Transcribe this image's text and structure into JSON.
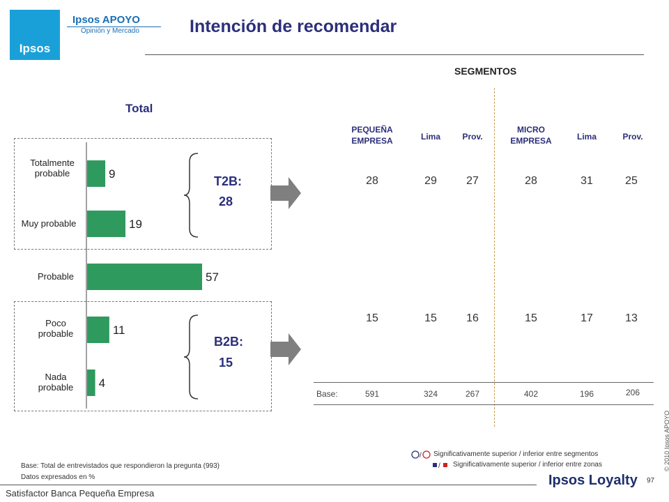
{
  "header": {
    "brand_name": "Ipsos APOYO",
    "brand_sub": "Opinión y Mercado",
    "logo_text": "Ipsos",
    "title": "Intención de recomendar"
  },
  "segments_title": "SEGMENTOS",
  "colors": {
    "bar": "#2e9a5e",
    "title": "#2c2f7a",
    "arrow": "#7f7f7f",
    "divider": "#c89a4a"
  },
  "chart_data": {
    "type": "bar",
    "title": "Total",
    "categories": [
      "Totalmente probable",
      "Muy probable",
      "Probable",
      "Poco probable",
      "Nada probable"
    ],
    "values": [
      9,
      19,
      57,
      11,
      4
    ],
    "orientation": "horizontal",
    "xlim": [
      0,
      60
    ]
  },
  "groups": {
    "t2b_label": "T2B:",
    "t2b_value": "28",
    "b2b_label": "B2B:",
    "b2b_value": "15"
  },
  "segment_table": {
    "columns": [
      {
        "label": "PEQUEÑA EMPRESA",
        "t2b": "28",
        "b2b": "15",
        "base": "591"
      },
      {
        "label": "Lima",
        "t2b": "29",
        "b2b": "15",
        "base": "324"
      },
      {
        "label": "Prov.",
        "t2b": "27",
        "b2b": "16",
        "base": "267"
      },
      {
        "label": "MICRO EMPRESA",
        "t2b": "28",
        "b2b": "15",
        "base": "402"
      },
      {
        "label": "Lima",
        "t2b": "31",
        "b2b": "17",
        "base": "196"
      },
      {
        "label": "Prov.",
        "t2b": "25",
        "b2b": "13",
        "base": "206"
      }
    ],
    "base_label": "Base:"
  },
  "notes": {
    "base_note": "Base: Total de entrevistados que respondieron la pregunta (993)",
    "data_note": "Datos expresados en %",
    "legend_circles": "Significativamente superior / inferior entre segmentos",
    "legend_squares": "Significativamente superior / inferior entre zonas"
  },
  "footer": {
    "left": "Satisfactor Banca Pequeña Empresa",
    "brand": "Ipsos Loyalty",
    "page": "97",
    "copyright": "© 2010 Ipsos APOYO"
  }
}
